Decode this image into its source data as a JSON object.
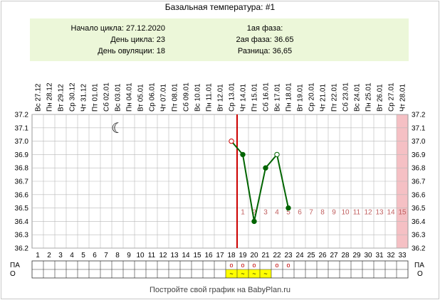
{
  "title": "Базальная температура: #1",
  "info": {
    "cycle_start": "Начало цикла: 27.12.2020",
    "cycle_day": "День цикла: 23",
    "ovulation_day": "День овуляции: 18",
    "phase1": "1ая фаза:",
    "phase2": "2ая фаза: 36.65",
    "difference": "Разница: 36,65"
  },
  "footer": "Постройте свой график на BabyPlan.ru",
  "colors": {
    "line": "#006400",
    "ovulation_line": "#cc0000",
    "highlight_day": "#f5c0c4",
    "phase_numbers": "#c06060",
    "grid": "#b8b8b8",
    "marker_yellow": "#ffff00"
  },
  "chart_data": {
    "type": "line",
    "title": "Базальная температура: #1",
    "xlabel": "",
    "ylabel": "",
    "ylim": [
      36.2,
      37.2
    ],
    "yticks": [
      "36.2",
      "36.3",
      "36.4",
      "36.5",
      "36.6",
      "36.7",
      "36.8",
      "36.9",
      "37.0",
      "37.1",
      "37.2"
    ],
    "dates": [
      "Вс 27.12",
      "Пн 28.12",
      "Вт 29.12",
      "Ср 30.12",
      "Чт 31.12",
      "Пт 01.01",
      "Сб 02.01",
      "Вс 03.01",
      "Пн 04.01",
      "Вт 05.01",
      "Ср 06.01",
      "Чт 07.01",
      "Пт 08.01",
      "Сб 09.01",
      "Вс 10.01",
      "Пн 11.01",
      "Вт 12.01",
      "Ср 13.01",
      "Чт 14.01",
      "Пт 15.01",
      "Сб 16.01",
      "Вс 17.01",
      "Пн 18.01",
      "Вт 19.01",
      "Ср 20.01",
      "Чт 21.01",
      "Пт 22.01",
      "Сб 23.01",
      "Вс 24.01",
      "Пн 25.01",
      "Вт 26.01",
      "Ср 27.01",
      "Чт 28.01"
    ],
    "days": [
      "1",
      "2",
      "3",
      "4",
      "5",
      "6",
      "7",
      "8",
      "9",
      "10",
      "11",
      "12",
      "13",
      "14",
      "15",
      "16",
      "17",
      "18",
      "19",
      "20",
      "21",
      "22",
      "23",
      "24",
      "25",
      "26",
      "27",
      "28",
      "29",
      "30",
      "31",
      "32",
      "33"
    ],
    "series": [
      {
        "points": [
          {
            "day": 18,
            "temp": 37.0,
            "marker": "open-red"
          },
          {
            "day": 19,
            "temp": 36.9,
            "marker": "filled"
          },
          {
            "day": 20,
            "temp": 36.4,
            "marker": "filled"
          },
          {
            "day": 21,
            "temp": 36.8,
            "marker": "filled"
          },
          {
            "day": 22,
            "temp": 36.9,
            "marker": "open"
          },
          {
            "day": 23,
            "temp": 36.5,
            "marker": "filled"
          }
        ]
      }
    ],
    "ovulation_day": 18,
    "highlight_day": 33,
    "moon_day": 8,
    "moon_temp": 37.1,
    "moon_symbol": "☾",
    "phase_row_temp": 36.47,
    "phase_numbers": [
      {
        "day": 19,
        "label": "1"
      },
      {
        "day": 20,
        "label": "2"
      },
      {
        "day": 21,
        "label": "3"
      },
      {
        "day": 22,
        "label": "4"
      },
      {
        "day": 23,
        "label": "5"
      },
      {
        "day": 24,
        "label": "6"
      },
      {
        "day": 25,
        "label": "7"
      },
      {
        "day": 26,
        "label": "8"
      },
      {
        "day": 27,
        "label": "9"
      },
      {
        "day": 28,
        "label": "10"
      },
      {
        "day": 29,
        "label": "11"
      },
      {
        "day": 30,
        "label": "12"
      },
      {
        "day": 31,
        "label": "13"
      },
      {
        "day": 32,
        "label": "14"
      },
      {
        "day": 33,
        "label": "15"
      }
    ],
    "rows": {
      "pa_label": "ПА",
      "o_label": "О",
      "pa_marks": [
        {
          "day": 18,
          "label": "o"
        },
        {
          "day": 19,
          "label": "o"
        },
        {
          "day": 20,
          "label": "o"
        },
        {
          "day": 22,
          "label": "o"
        },
        {
          "day": 23,
          "label": "o"
        }
      ],
      "o_marks": [
        {
          "day": 18,
          "label": "~"
        },
        {
          "day": 19,
          "label": "~"
        },
        {
          "day": 20,
          "label": "~"
        },
        {
          "day": 21,
          "label": "~"
        }
      ]
    }
  }
}
